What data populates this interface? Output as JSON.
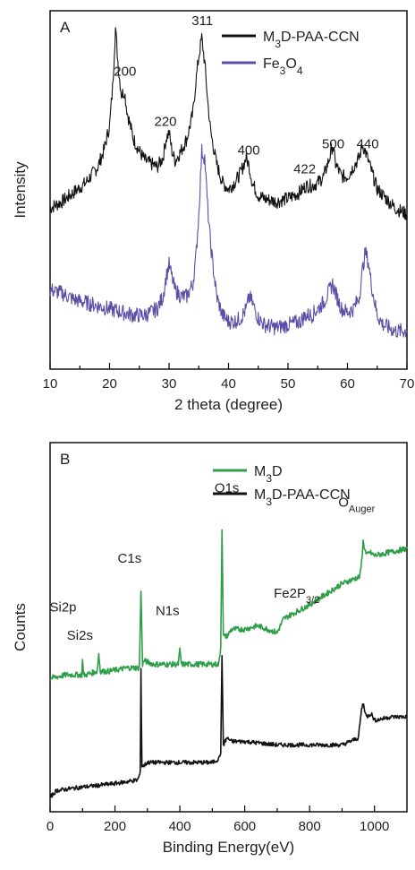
{
  "chart_data": [
    {
      "type": "line",
      "panel_label": "A",
      "xlabel": "2 theta (degree)",
      "ylabel": "Intensity",
      "xlim": [
        10,
        70
      ],
      "ylim": [
        0,
        1
      ],
      "xticks": [
        "10",
        "20",
        "30",
        "40",
        "50",
        "60",
        "70"
      ],
      "legend_position": "top-right",
      "series": [
        {
          "name": "M3D-PAA-CCN",
          "color": "#111111",
          "x": [
            10,
            12,
            14,
            16,
            18,
            19,
            20,
            20.5,
            21,
            21.5,
            22,
            22.5,
            23,
            24,
            25,
            26,
            27,
            28,
            29,
            29.5,
            30,
            30.5,
            31,
            32,
            33,
            34,
            34.5,
            35,
            35.5,
            36,
            36.5,
            37,
            38,
            39,
            40,
            41,
            42,
            43,
            43.5,
            44,
            45,
            46,
            48,
            50,
            52,
            53,
            54,
            55,
            56,
            57,
            57.5,
            58,
            59,
            60,
            61,
            62,
            62.5,
            63,
            64,
            65,
            66,
            67,
            68,
            70
          ],
          "y": [
            0.42,
            0.44,
            0.47,
            0.5,
            0.55,
            0.6,
            0.68,
            0.8,
            0.99,
            0.86,
            0.78,
            0.79,
            0.72,
            0.64,
            0.6,
            0.57,
            0.56,
            0.55,
            0.58,
            0.64,
            0.66,
            0.6,
            0.57,
            0.6,
            0.64,
            0.72,
            0.82,
            0.9,
            0.96,
            0.88,
            0.76,
            0.66,
            0.56,
            0.5,
            0.48,
            0.5,
            0.53,
            0.58,
            0.55,
            0.5,
            0.46,
            0.45,
            0.44,
            0.45,
            0.47,
            0.49,
            0.49,
            0.5,
            0.52,
            0.58,
            0.62,
            0.56,
            0.52,
            0.52,
            0.55,
            0.58,
            0.62,
            0.6,
            0.54,
            0.48,
            0.46,
            0.44,
            0.42,
            0.4
          ]
        },
        {
          "name": "Fe3O4",
          "color": "#5b4ea6",
          "x": [
            10,
            12,
            14,
            16,
            18,
            20,
            22,
            24,
            26,
            27,
            28,
            29,
            29.5,
            30,
            30.5,
            31,
            32,
            33,
            34,
            34.5,
            35,
            35.5,
            36,
            36.5,
            37,
            38,
            39,
            40,
            41,
            42,
            43,
            43.5,
            44,
            45,
            46,
            48,
            50,
            52,
            53,
            54,
            55,
            56,
            57,
            57.5,
            58,
            59,
            60,
            61,
            62,
            62.5,
            63,
            63.5,
            64,
            65,
            66,
            68,
            70
          ],
          "y": [
            0.16,
            0.15,
            0.13,
            0.12,
            0.11,
            0.1,
            0.09,
            0.08,
            0.08,
            0.09,
            0.1,
            0.14,
            0.2,
            0.24,
            0.2,
            0.16,
            0.14,
            0.14,
            0.18,
            0.26,
            0.4,
            0.6,
            0.58,
            0.42,
            0.3,
            0.14,
            0.08,
            0.06,
            0.06,
            0.07,
            0.1,
            0.14,
            0.12,
            0.07,
            0.05,
            0.04,
            0.05,
            0.06,
            0.08,
            0.08,
            0.1,
            0.12,
            0.16,
            0.18,
            0.15,
            0.1,
            0.09,
            0.1,
            0.14,
            0.22,
            0.28,
            0.25,
            0.18,
            0.08,
            0.05,
            0.03,
            0.03
          ]
        }
      ],
      "annotations": [
        {
          "text": "200",
          "x": 22.6,
          "y": 0.84
        },
        {
          "text": "220",
          "x": 29.4,
          "y": 0.68
        },
        {
          "text": "311",
          "x": 35.6,
          "y": 1.0
        },
        {
          "text": "400",
          "x": 43.4,
          "y": 0.59
        },
        {
          "text": "422",
          "x": 52.8,
          "y": 0.53
        },
        {
          "text": "500",
          "x": 57.6,
          "y": 0.61
        },
        {
          "text": "440",
          "x": 63.4,
          "y": 0.61
        }
      ]
    },
    {
      "type": "line",
      "panel_label": "B",
      "xlabel": "Binding Energy(eV)",
      "ylabel": "Counts",
      "xlim": [
        0,
        1100
      ],
      "ylim": [
        0,
        1
      ],
      "xticks": [
        "0",
        "200",
        "400",
        "600",
        "800",
        "1000"
      ],
      "legend_position": "top-right",
      "series": [
        {
          "name": "M3D",
          "color": "#2e9e48",
          "x": [
            0,
            50,
            98,
            100,
            103,
            110,
            145,
            150,
            155,
            180,
            240,
            275,
            280,
            285,
            290,
            320,
            380,
            395,
            400,
            405,
            420,
            480,
            520,
            526,
            530,
            534,
            545,
            560,
            600,
            640,
            700,
            720,
            800,
            900,
            955,
            960,
            965,
            975,
            985,
            1000,
            1050,
            1100
          ],
          "y": [
            0.37,
            0.38,
            0.38,
            0.43,
            0.38,
            0.38,
            0.39,
            0.44,
            0.39,
            0.39,
            0.4,
            0.4,
            0.62,
            0.41,
            0.42,
            0.41,
            0.41,
            0.41,
            0.45,
            0.41,
            0.41,
            0.41,
            0.41,
            0.46,
            0.8,
            0.49,
            0.49,
            0.51,
            0.51,
            0.52,
            0.5,
            0.54,
            0.58,
            0.64,
            0.66,
            0.7,
            0.76,
            0.72,
            0.73,
            0.72,
            0.73,
            0.74
          ]
        },
        {
          "name": "M3D-PAA-CCN",
          "color": "#111111",
          "x": [
            0,
            20,
            100,
            200,
            270,
            278,
            280,
            283,
            288,
            300,
            400,
            500,
            520,
            526,
            530,
            534,
            545,
            560,
            600,
            700,
            800,
            900,
            950,
            960,
            965,
            975,
            990,
            1000,
            1050,
            1100
          ],
          "y": [
            0.03,
            0.05,
            0.06,
            0.07,
            0.08,
            0.1,
            0.4,
            0.12,
            0.12,
            0.13,
            0.13,
            0.13,
            0.14,
            0.16,
            0.43,
            0.18,
            0.2,
            0.19,
            0.19,
            0.18,
            0.18,
            0.18,
            0.2,
            0.28,
            0.3,
            0.26,
            0.27,
            0.25,
            0.26,
            0.26
          ]
        }
      ],
      "annotations": [
        {
          "text": "Si2p",
          "x": 40,
          "y": 0.56
        },
        {
          "text": "Si2s",
          "x": 92,
          "y": 0.48
        },
        {
          "text": "C1s",
          "x": 245,
          "y": 0.7
        },
        {
          "text": "N1s",
          "x": 362,
          "y": 0.55
        },
        {
          "text": "O1s",
          "x": 545,
          "y": 0.9
        },
        {
          "text": "Fe2P",
          "sub": "3/2",
          "x": 760,
          "y": 0.6
        },
        {
          "text": "O",
          "sub": "Auger",
          "x": 945,
          "y": 0.86
        }
      ]
    }
  ]
}
